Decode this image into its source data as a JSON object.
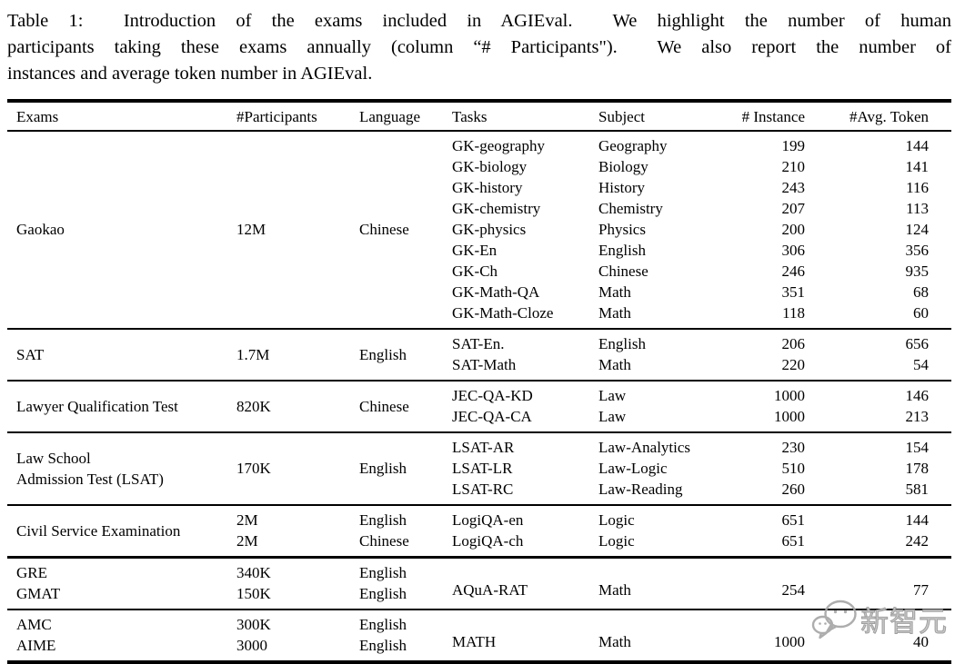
{
  "caption": {
    "lines": [
      "Table 1:  Introduction of the exams included in AGIEval.  We highlight the number of human",
      "participants taking these exams annually (column “# Participants\").  We also report the number of",
      "instances and average token number in AGIEval."
    ]
  },
  "table": {
    "headers": [
      "Exams",
      "#Participants",
      "Language",
      "Tasks",
      "Subject",
      "# Instance",
      "#Avg. Token"
    ],
    "sections": [
      {
        "exam_lines": [
          "Gaokao"
        ],
        "participants_lines": [
          "12M"
        ],
        "language_lines": [
          "Chinese"
        ],
        "task_rows": [
          {
            "task": "GK-geography",
            "subject": "Geography",
            "instances": "199",
            "avg_token": "144"
          },
          {
            "task": "GK-biology",
            "subject": "Biology",
            "instances": "210",
            "avg_token": "141"
          },
          {
            "task": "GK-history",
            "subject": "History",
            "instances": "243",
            "avg_token": "116"
          },
          {
            "task": "GK-chemistry",
            "subject": "Chemistry",
            "instances": "207",
            "avg_token": "113"
          },
          {
            "task": "GK-physics",
            "subject": "Physics",
            "instances": "200",
            "avg_token": "124"
          },
          {
            "task": "GK-En",
            "subject": "English",
            "instances": "306",
            "avg_token": "356"
          },
          {
            "task": "GK-Ch",
            "subject": "Chinese",
            "instances": "246",
            "avg_token": "935"
          },
          {
            "task": "GK-Math-QA",
            "subject": "Math",
            "instances": "351",
            "avg_token": "68"
          },
          {
            "task": "GK-Math-Cloze",
            "subject": "Math",
            "instances": "118",
            "avg_token": "60"
          }
        ]
      },
      {
        "exam_lines": [
          "SAT"
        ],
        "participants_lines": [
          "1.7M"
        ],
        "language_lines": [
          "English"
        ],
        "task_rows": [
          {
            "task": "SAT-En.",
            "subject": "English",
            "instances": "206",
            "avg_token": "656"
          },
          {
            "task": "SAT-Math",
            "subject": "Math",
            "instances": "220",
            "avg_token": "54"
          }
        ]
      },
      {
        "exam_lines": [
          "Lawyer Qualification Test"
        ],
        "participants_lines": [
          "820K"
        ],
        "language_lines": [
          "Chinese"
        ],
        "task_rows": [
          {
            "task": "JEC-QA-KD",
            "subject": "Law",
            "instances": "1000",
            "avg_token": "146"
          },
          {
            "task": "JEC-QA-CA",
            "subject": "Law",
            "instances": "1000",
            "avg_token": "213"
          }
        ]
      },
      {
        "exam_lines": [
          "Law School",
          "Admission Test (LSAT)"
        ],
        "participants_lines": [
          "170K"
        ],
        "language_lines": [
          "English"
        ],
        "task_rows": [
          {
            "task": "LSAT-AR",
            "subject": "Law-Analytics",
            "instances": "230",
            "avg_token": "154"
          },
          {
            "task": "LSAT-LR",
            "subject": "Law-Logic",
            "instances": "510",
            "avg_token": "178"
          },
          {
            "task": "LSAT-RC",
            "subject": "Law-Reading",
            "instances": "260",
            "avg_token": "581"
          }
        ]
      },
      {
        "exam_lines": [
          "Civil Service Examination"
        ],
        "participants_lines": [
          "2M",
          "2M"
        ],
        "language_lines": [
          "English",
          "Chinese"
        ],
        "task_rows": [
          {
            "task": "LogiQA-en",
            "subject": "Logic",
            "instances": "651",
            "avg_token": "144"
          },
          {
            "task": "LogiQA-ch",
            "subject": "Logic",
            "instances": "651",
            "avg_token": "242"
          }
        ]
      },
      {
        "exam_lines": [
          "GRE",
          "GMAT"
        ],
        "participants_lines": [
          "340K",
          "150K"
        ],
        "language_lines": [
          "English",
          "English"
        ],
        "task_rows": [
          {
            "task": "",
            "subject": "",
            "instances": "",
            "avg_token": ""
          },
          {
            "task": "AQuA-RAT",
            "subject": "Math",
            "instances": "254",
            "avg_token": "77"
          }
        ]
      },
      {
        "exam_lines": [
          "AMC",
          "AIME"
        ],
        "participants_lines": [
          "300K",
          "3000"
        ],
        "language_lines": [
          "English",
          "English"
        ],
        "task_rows": [
          {
            "task": "",
            "subject": "",
            "instances": "",
            "avg_token": ""
          },
          {
            "task": "MATH",
            "subject": "Math",
            "instances": "1000",
            "avg_token": "40"
          }
        ]
      }
    ]
  },
  "watermark": {
    "text": "新智元",
    "icon": "chat-bubbles-icon"
  }
}
